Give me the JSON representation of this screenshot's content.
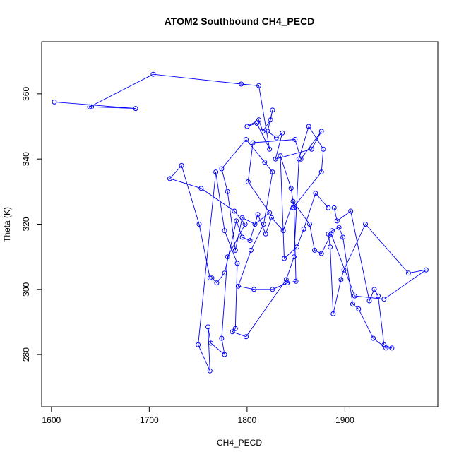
{
  "chart_data": {
    "type": "line",
    "title": "ATOM2 Southbound CH4_PECD",
    "xlabel": "CH4_PECD",
    "ylabel": "Theta (K)",
    "xlim": [
      1590,
      1995
    ],
    "ylim": [
      264,
      376
    ],
    "xticks": [
      1600,
      1700,
      1800,
      1900
    ],
    "yticks": [
      280,
      300,
      320,
      340,
      360
    ],
    "grid": false,
    "legend": "none",
    "markers": "open-circle",
    "colors": {
      "series": "#0000ff",
      "axes": "#000000"
    },
    "series": [
      {
        "points": [
          [
            1603,
            357.5
          ],
          [
            1686,
            355.5
          ],
          [
            1641,
            356
          ],
          [
            1639,
            356
          ],
          [
            1704,
            366
          ],
          [
            1794,
            363
          ],
          [
            1812,
            362.5
          ],
          [
            1823,
            343
          ],
          [
            1810,
            351
          ],
          [
            1800,
            350
          ],
          [
            1812,
            352
          ],
          [
            1816,
            348.5
          ],
          [
            1824,
            352
          ],
          [
            1826,
            355
          ],
          [
            1821,
            348.5
          ],
          [
            1830,
            346.5
          ],
          [
            1836,
            348
          ],
          [
            1829,
            340
          ],
          [
            1866,
            343
          ],
          [
            1876,
            348.5
          ],
          [
            1855,
            340
          ],
          [
            1849,
            346
          ],
          [
            1806,
            345
          ],
          [
            1801,
            333
          ],
          [
            1823,
            323.5
          ],
          [
            1808,
            320
          ],
          [
            1795,
            322
          ],
          [
            1788,
            312
          ],
          [
            1780,
            330
          ],
          [
            1774,
            337
          ],
          [
            1799,
            346
          ],
          [
            1818,
            339
          ],
          [
            1826,
            336
          ],
          [
            1817,
            320
          ],
          [
            1804,
            312
          ],
          [
            1791,
            301
          ],
          [
            1807,
            300
          ],
          [
            1826,
            300
          ],
          [
            1841,
            302
          ],
          [
            1850,
            302.5
          ],
          [
            1848,
            325
          ],
          [
            1845,
            331
          ],
          [
            1834,
            341
          ],
          [
            1838,
            309.5
          ],
          [
            1851,
            313
          ],
          [
            1858,
            318.5
          ],
          [
            1870,
            329.5
          ],
          [
            1883,
            325
          ],
          [
            1889,
            325
          ],
          [
            1892,
            321
          ],
          [
            1906,
            324
          ],
          [
            1925,
            296.5
          ],
          [
            1930,
            300
          ],
          [
            1934,
            298
          ],
          [
            1940,
            283
          ],
          [
            1948,
            282
          ],
          [
            1942,
            282
          ],
          [
            1929,
            285
          ],
          [
            1914,
            294
          ],
          [
            1908,
            295.5
          ],
          [
            1898,
            316
          ],
          [
            1894,
            319
          ],
          [
            1887,
            318
          ],
          [
            1883,
            317
          ],
          [
            1885,
            313
          ],
          [
            1888,
            292.5
          ],
          [
            1896,
            303
          ],
          [
            1899,
            306
          ],
          [
            1921,
            320
          ],
          [
            1965,
            305
          ],
          [
            1983,
            306
          ],
          [
            1940,
            297
          ],
          [
            1910,
            298
          ],
          [
            1886,
            317
          ],
          [
            1876,
            311
          ],
          [
            1869,
            312
          ],
          [
            1864,
            320
          ],
          [
            1847,
            327
          ],
          [
            1837,
            318
          ],
          [
            1825,
            322
          ],
          [
            1819,
            317
          ],
          [
            1811,
            323
          ],
          [
            1803,
            315
          ],
          [
            1795,
            316
          ],
          [
            1789,
            321
          ],
          [
            1777,
            305
          ],
          [
            1769,
            302
          ],
          [
            1764,
            303.5
          ],
          [
            1762,
            303.5
          ],
          [
            1751,
            320
          ],
          [
            1733,
            338
          ],
          [
            1721,
            334
          ],
          [
            1753,
            331
          ],
          [
            1787,
            324
          ],
          [
            1798,
            320
          ],
          [
            1780,
            310
          ],
          [
            1774,
            285
          ],
          [
            1777,
            280
          ],
          [
            1763,
            283.5
          ],
          [
            1760,
            288.5
          ],
          [
            1762,
            275
          ],
          [
            1750,
            283
          ],
          [
            1768,
            336
          ],
          [
            1777,
            318
          ],
          [
            1790,
            308
          ],
          [
            1788,
            288
          ],
          [
            1785,
            287
          ],
          [
            1799,
            285.5
          ],
          [
            1840,
            303
          ],
          [
            1848,
            310
          ],
          [
            1853,
            340
          ],
          [
            1863,
            350
          ],
          [
            1878,
            343
          ],
          [
            1876,
            336
          ],
          [
            1847,
            325
          ]
        ]
      }
    ]
  }
}
